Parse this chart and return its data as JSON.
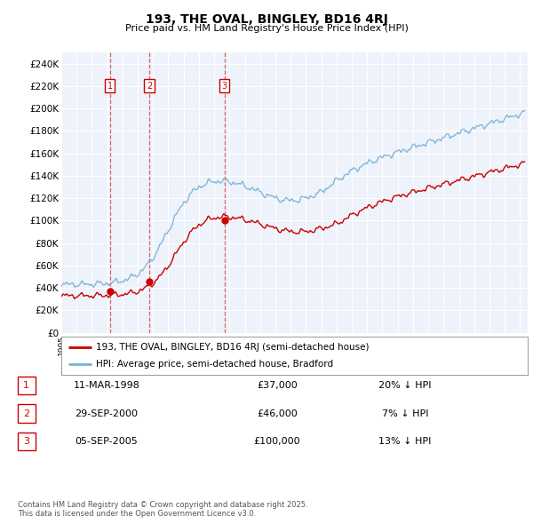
{
  "title_line1": "193, THE OVAL, BINGLEY, BD16 4RJ",
  "title_line2": "Price paid vs. HM Land Registry's House Price Index (HPI)",
  "ylim": [
    0,
    250000
  ],
  "yticks": [
    0,
    20000,
    40000,
    60000,
    80000,
    100000,
    120000,
    140000,
    160000,
    180000,
    200000,
    220000,
    240000
  ],
  "ytick_labels": [
    "£0",
    "£20K",
    "£40K",
    "£60K",
    "£80K",
    "£100K",
    "£120K",
    "£140K",
    "£160K",
    "£180K",
    "£200K",
    "£220K",
    "£240K"
  ],
  "background_color": "#ffffff",
  "plot_bg_color": "#eef2fb",
  "grid_color": "#ffffff",
  "red_color": "#cc0000",
  "blue_color": "#7ab0d4",
  "vline_dates": [
    1998.19,
    2000.75,
    2005.68
  ],
  "sale_dates": [
    1998.19,
    2000.75,
    2005.68
  ],
  "sale_prices": [
    37000,
    46000,
    100000
  ],
  "sale_labels": [
    "1",
    "2",
    "3"
  ],
  "legend_red_label": "193, THE OVAL, BINGLEY, BD16 4RJ (semi-detached house)",
  "legend_blue_label": "HPI: Average price, semi-detached house, Bradford",
  "table_rows": [
    {
      "num": "1",
      "date": "11-MAR-1998",
      "price": "£37,000",
      "hpi": "20% ↓ HPI"
    },
    {
      "num": "2",
      "date": "29-SEP-2000",
      "price": "£46,000",
      "hpi": "7% ↓ HPI"
    },
    {
      "num": "3",
      "date": "05-SEP-2005",
      "price": "£100,000",
      "hpi": "13% ↓ HPI"
    }
  ],
  "footnote": "Contains HM Land Registry data © Crown copyright and database right 2025.\nThis data is licensed under the Open Government Licence v3.0."
}
